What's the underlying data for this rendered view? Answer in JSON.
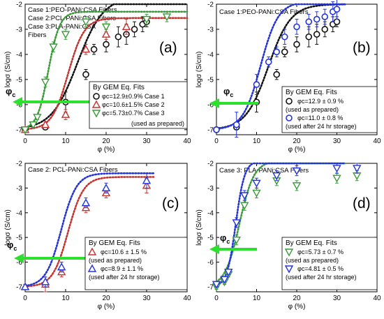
{
  "colors": {
    "black": "#111111",
    "red": "#c4332f",
    "green": "#3a9a3a",
    "blue": "#2233dd",
    "arrow": "#2ee02e"
  },
  "panels": [
    {
      "id": "a",
      "letter": "(a)",
      "titles": [
        "Case 1:PEO-PANi:CSA Fibers",
        "Case 2:PCL-PANi:CSA Fibers",
        "Case 3:PLA-PANi:CSA",
        "Fibers"
      ],
      "xlabel": "φ (%)",
      "ylabel": "logσ (S/cm)",
      "phi_label": "φc",
      "legend_header": "By GEM Eq. Fits",
      "legend_items": [
        "φc=12.9±0.9% Case 1",
        "φc=10.6±1.5% Case 2",
        "φc=5.73±0.7% Case 3"
      ],
      "legend_note": "(used as prepared)"
    },
    {
      "id": "b",
      "letter": "(b)",
      "titles": [
        "Case 1:PEO-PANi:CSA Fibers"
      ],
      "xlabel": "φ (%)",
      "ylabel": "logσ (S/cm)",
      "phi_label": "φc",
      "legend_header": "By GEM Eq. Fits",
      "legend_items": [
        "φc=12.9 ± 0.9 %",
        "(used as prepared)",
        "φc=11.0 ± 0.8 %",
        "(used after 24 hr storage)"
      ]
    },
    {
      "id": "c",
      "letter": "(c)",
      "titles": [
        "Case 2: PCL-PANi:CSA Fibers"
      ],
      "xlabel": "φ (%)",
      "ylabel": "logσ (S/cm)",
      "phi_label": "φc",
      "legend_header": "By GEM Eq. Fits",
      "legend_items": [
        "φc=10.6 ± 1.5 %",
        "(used as prepared)",
        "φc=8.9 ± 1.1 %",
        "(used after 24 hr storage)"
      ]
    },
    {
      "id": "d",
      "letter": "(d)",
      "titles": [
        "Case 3: PLA-PANi:CSA Fibers"
      ],
      "xlabel": "φ (%)",
      "ylabel": "logσ (S/cm)",
      "phi_label": "φc",
      "legend_header": "By GEM Eq. Fits",
      "legend_items": [
        "φc=5.73 ± 0.7 %",
        "(used as prepared)",
        "φc=4.81 ± 0.5 %",
        "(used after 24 hr storage)"
      ]
    }
  ],
  "chart_data": [
    {
      "type": "scatter",
      "panel": "a",
      "xlim": [
        0,
        40
      ],
      "ylim": [
        -7.2,
        -2
      ],
      "xticks": [
        0,
        10,
        20,
        30,
        40
      ],
      "yticks": [
        -7,
        -6,
        -5,
        -4,
        -3,
        -2
      ],
      "series": [
        {
          "color_key": "black",
          "marker": "circle",
          "x": [
            0,
            5,
            10,
            15,
            17,
            20,
            23,
            25,
            27,
            29,
            30
          ],
          "y": [
            -7.0,
            -6.9,
            -5.9,
            -4.8,
            -3.8,
            -3.6,
            -3.3,
            -3.2,
            -3.0,
            -2.8,
            -2.7
          ],
          "err": [
            0.1,
            0.1,
            0.4,
            0.2,
            0.2,
            0.3,
            0.4,
            0.4,
            0.3,
            0.3,
            0.2
          ],
          "fit": {
            "phic": 12.9,
            "lo": -7.0,
            "hi": -1.7,
            "w": 3.2
          }
        },
        {
          "color_key": "red",
          "marker": "triangle-up",
          "x": [
            0,
            5,
            10,
            15,
            20,
            25
          ],
          "y": [
            -7.0,
            -6.8,
            -6.4,
            -3.8,
            -3.2,
            -2.9
          ],
          "err": [
            0.1,
            0.1,
            0.2,
            0.2,
            0.2,
            0.3
          ],
          "fit": {
            "phic": 10.6,
            "lo": -7.0,
            "hi": -2.55,
            "w": 2.0
          }
        },
        {
          "color_key": "green",
          "marker": "triangle-down",
          "x": [
            0,
            2,
            3,
            5,
            7,
            10,
            15,
            20,
            30,
            35
          ],
          "y": [
            -7.0,
            -6.8,
            -6.5,
            -5.1,
            -3.7,
            -3.2,
            -2.7,
            -2.9,
            -2.6,
            -2.5
          ],
          "err": [
            0.1,
            0.1,
            0.1,
            0.2,
            0.2,
            0.2,
            0.2,
            0.2,
            0.2,
            0.2
          ],
          "fit": {
            "phic": 5.73,
            "lo": -7.0,
            "hi": -2.3,
            "w": 1.4
          }
        }
      ]
    },
    {
      "type": "scatter",
      "panel": "b",
      "xlim": [
        0,
        40
      ],
      "ylim": [
        -7.2,
        -2
      ],
      "xticks": [
        0,
        10,
        20,
        30,
        40
      ],
      "yticks": [
        -7,
        -6,
        -5,
        -4,
        -3,
        -2
      ],
      "series": [
        {
          "color_key": "black",
          "marker": "circle",
          "x": [
            0,
            5,
            10,
            15,
            17,
            20,
            23,
            25,
            27,
            29,
            30
          ],
          "y": [
            -7.0,
            -6.9,
            -5.9,
            -4.8,
            -3.9,
            -3.6,
            -3.3,
            -3.2,
            -3.0,
            -2.8,
            -2.7
          ],
          "err": [
            0.1,
            0.1,
            0.4,
            0.2,
            0.2,
            0.3,
            0.4,
            0.4,
            0.3,
            0.3,
            0.2
          ],
          "fit": {
            "phic": 12.9,
            "lo": -7.0,
            "hi": -2.0,
            "w": 2.8
          }
        },
        {
          "color_key": "blue",
          "marker": "circle",
          "x": [
            0,
            5,
            10,
            13,
            15,
            17,
            20,
            23,
            25,
            27,
            29,
            30
          ],
          "y": [
            -7.0,
            -6.8,
            -5.2,
            -4.3,
            -3.9,
            -3.3,
            -2.9,
            -2.7,
            -2.6,
            -2.5,
            -2.3,
            -2.2
          ],
          "err": [
            0.1,
            0.5,
            0.4,
            0.2,
            0.2,
            0.3,
            0.3,
            0.3,
            0.3,
            0.3,
            0.4,
            0.4
          ],
          "fit": {
            "phic": 11.0,
            "lo": -7.0,
            "hi": -1.9,
            "w": 2.2
          }
        }
      ]
    },
    {
      "type": "scatter",
      "panel": "c",
      "xlim": [
        0,
        40
      ],
      "ylim": [
        -7.2,
        -2
      ],
      "xticks": [
        0,
        10,
        20,
        30,
        40
      ],
      "yticks": [
        -7,
        -6,
        -5,
        -4,
        -3,
        -2
      ],
      "series": [
        {
          "color_key": "red",
          "marker": "triangle-up",
          "x": [
            0,
            5,
            9,
            15,
            20,
            30
          ],
          "y": [
            -7.0,
            -6.9,
            -6.4,
            -3.8,
            -3.2,
            -2.9
          ],
          "err": [
            0.1,
            0.3,
            0.2,
            0.2,
            0.2,
            0.3
          ],
          "fit": {
            "phic": 10.6,
            "lo": -7.0,
            "hi": -2.55,
            "w": 1.9
          }
        },
        {
          "color_key": "blue",
          "marker": "triangle-up",
          "x": [
            0,
            5,
            9,
            15,
            20,
            30
          ],
          "y": [
            -7.0,
            -6.8,
            -6.2,
            -3.6,
            -3.0,
            -2.7
          ],
          "err": [
            0.1,
            0.2,
            0.2,
            0.2,
            0.2,
            0.3
          ],
          "fit": {
            "phic": 8.9,
            "lo": -7.0,
            "hi": -2.4,
            "w": 1.9
          }
        }
      ]
    },
    {
      "type": "scatter",
      "panel": "d",
      "xlim": [
        0,
        40
      ],
      "ylim": [
        -7.2,
        -2
      ],
      "xticks": [
        0,
        10,
        20,
        30,
        40
      ],
      "yticks": [
        -7,
        -6,
        -5,
        -4,
        -3,
        -2
      ],
      "series": [
        {
          "color_key": "green",
          "marker": "triangle-down",
          "x": [
            0,
            2,
            3,
            5,
            7,
            10,
            15,
            20,
            30,
            35
          ],
          "y": [
            -7.0,
            -6.8,
            -6.5,
            -5.1,
            -3.7,
            -3.2,
            -2.7,
            -2.9,
            -2.6,
            -2.5
          ],
          "err": [
            0.1,
            0.1,
            0.1,
            0.2,
            0.2,
            0.2,
            0.2,
            0.2,
            0.2,
            0.2
          ],
          "fit": {
            "phic": 5.73,
            "lo": -7.0,
            "hi": -1.9,
            "w": 1.8
          }
        },
        {
          "color_key": "blue",
          "marker": "triangle-down",
          "x": [
            0,
            2,
            3,
            5,
            7,
            10,
            15,
            20,
            30,
            35
          ],
          "y": [
            -6.9,
            -6.7,
            -6.4,
            -4.4,
            -3.3,
            -2.8,
            -2.5,
            -2.3,
            -2.2,
            -2.2
          ],
          "err": [
            0.1,
            0.1,
            0.1,
            0.2,
            0.2,
            0.2,
            0.2,
            0.2,
            0.2,
            0.2
          ],
          "fit": {
            "phic": 4.81,
            "lo": -7.0,
            "hi": -1.9,
            "w": 1.1
          }
        }
      ]
    }
  ]
}
